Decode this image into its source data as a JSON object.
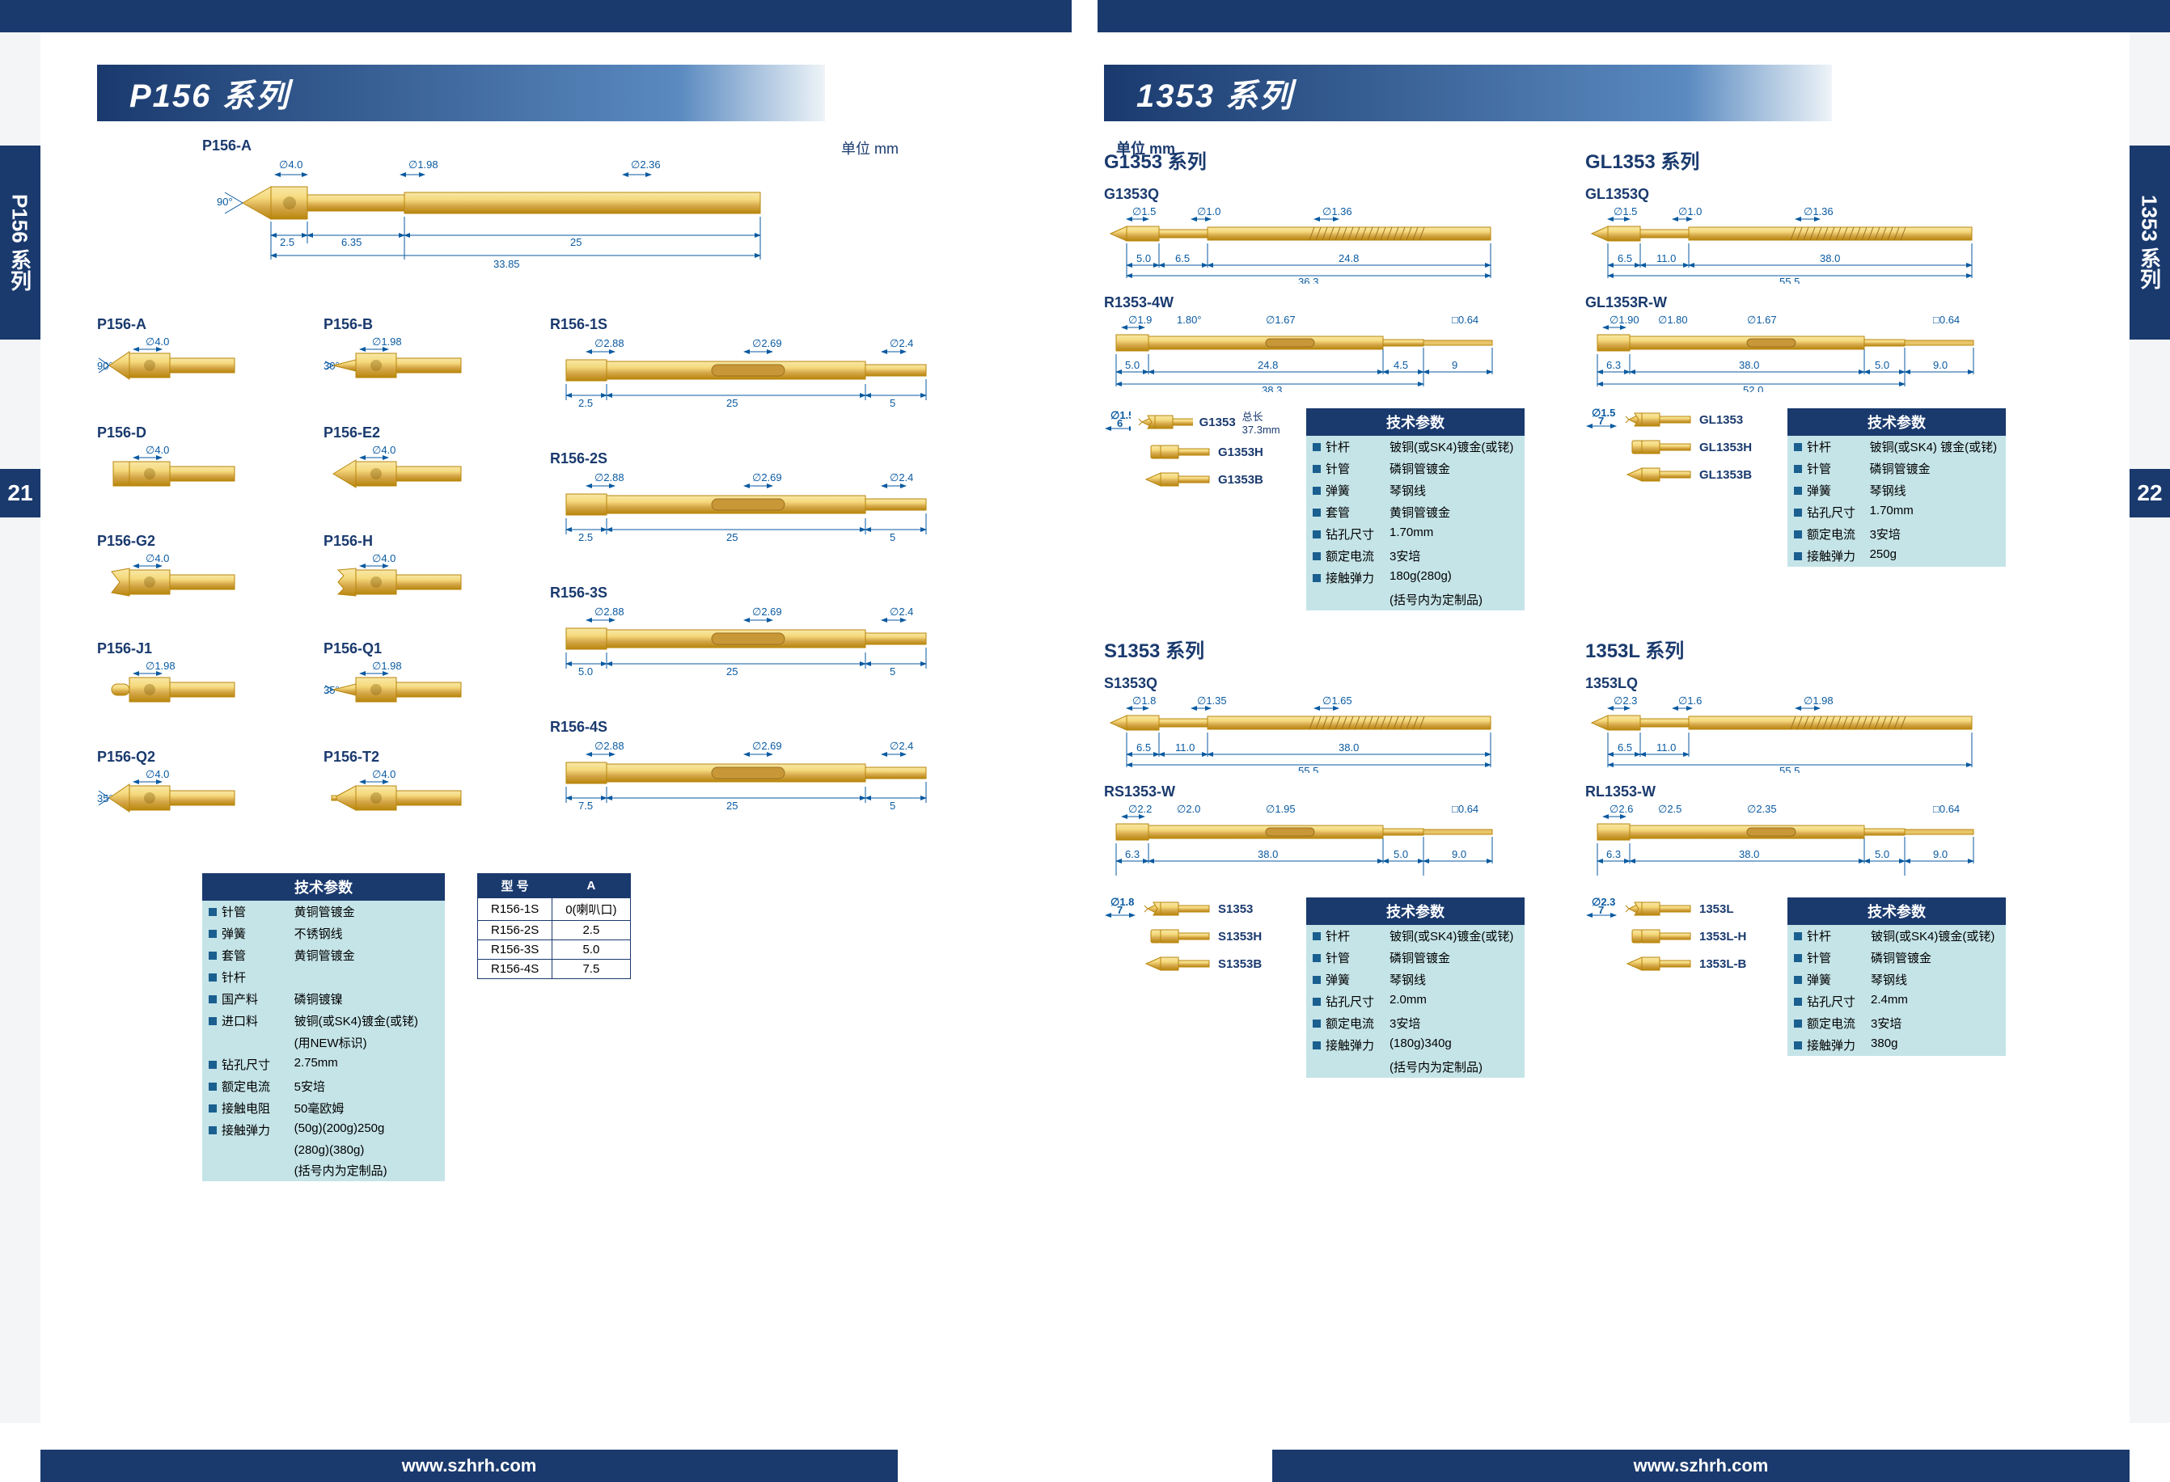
{
  "top": {
    "leftSeries": "P156 系列",
    "rightSeries": "1353 系列",
    "unitLabelL": "单位   mm",
    "unitLabelR": "单位   mm",
    "pageL": "21",
    "pageR": "22",
    "url": "www.szhrh.com",
    "sideLabelL": "P156 系列",
    "sideLabelR": "1353 系列"
  },
  "colors": {
    "navy": "#1a3a6e",
    "gold1": "#f5d97c",
    "gold2": "#d4a648",
    "gold3": "#b8860b",
    "dimcolor": "#0a5aa0",
    "specbg": "#c5e4e8"
  },
  "p156": {
    "mainLabel": "P156-A",
    "mainDims": {
      "d1": "∅4.0",
      "d2": "∅1.98",
      "d3": "∅2.36",
      "ang": "90°",
      "s1": "2.5",
      "s2": "6.35",
      "s3": "25",
      "overall": "33.85"
    },
    "tips": [
      {
        "name": "P156-A",
        "dim": "∅4.0",
        "ang": "90°"
      },
      {
        "name": "P156-B",
        "dim": "∅1.98",
        "ang": "30°"
      },
      {
        "name": "P156-D",
        "dim": "∅4.0"
      },
      {
        "name": "P156-E2",
        "dim": "∅4.0"
      },
      {
        "name": "P156-G2",
        "dim": "∅4.0"
      },
      {
        "name": "P156-H",
        "dim": "∅4.0"
      },
      {
        "name": "P156-J1",
        "dim": "∅1.98"
      },
      {
        "name": "P156-Q1",
        "dim": "∅1.98",
        "ang": "35°"
      },
      {
        "name": "P156-Q2",
        "dim": "∅4.0",
        "ang": "35°"
      },
      {
        "name": "P156-T2",
        "dim": "∅4.0"
      }
    ],
    "recepts": [
      {
        "name": "R156-1S",
        "d1": "∅2.88",
        "d2": "∅2.69",
        "d3": "∅2.4",
        "s1": "2.5",
        "s2": "25",
        "s3": "5"
      },
      {
        "name": "R156-2S",
        "d1": "∅2.88",
        "d2": "∅2.69",
        "d3": "∅2.4",
        "s1": "2.5",
        "s2": "25",
        "s3": "5"
      },
      {
        "name": "R156-3S",
        "d1": "∅2.88",
        "d2": "∅2.69",
        "d3": "∅2.4",
        "s1": "5.0",
        "s2": "25",
        "s3": "5"
      },
      {
        "name": "R156-4S",
        "d1": "∅2.88",
        "d2": "∅2.69",
        "d3": "∅2.4",
        "s1": "7.5",
        "s2": "25",
        "s3": "5"
      }
    ],
    "spec": {
      "title": "技术参数",
      "rows": [
        [
          "针管",
          "黄铜管镀金"
        ],
        [
          "弹簧",
          "不锈钢线"
        ],
        [
          "套管",
          "黄铜管镀金"
        ],
        [
          "针杆",
          ""
        ],
        [
          "国产料",
          "磷铜镀镍"
        ],
        [
          "进口料",
          "铍铜(或SK4)镀金(或铑)"
        ],
        [
          "",
          "(用NEW标识)"
        ],
        [
          "钻孔尺寸",
          "2.75mm"
        ],
        [
          "额定电流",
          "5安培"
        ],
        [
          "接触电阻",
          "50毫欧姆"
        ],
        [
          "接触弹力",
          "(50g)(200g)250g"
        ],
        [
          "",
          "(280g)(380g)"
        ],
        [
          "",
          "(括号内为定制品)"
        ]
      ]
    },
    "atable": {
      "cols": [
        "型 号",
        "A"
      ],
      "rows": [
        [
          "R156-1S",
          "0(喇叭口)"
        ],
        [
          "R156-2S",
          "2.5"
        ],
        [
          "R156-3S",
          "5.0"
        ],
        [
          "R156-4S",
          "7.5"
        ]
      ]
    }
  },
  "s1353": {
    "groups": [
      {
        "title": "G1353 系列",
        "probe": {
          "name": "G1353Q",
          "d1": "∅1.5",
          "d2": "∅1.0",
          "d3": "∅1.36",
          "s1": "5.0",
          "s2": "6.5",
          "s3": "24.8",
          "over": "36.3"
        },
        "recept": {
          "name": "R1353-4W",
          "d1": "∅1.9",
          "d2": "1.80°",
          "d3": "∅1.67",
          "d4": "□0.64",
          "s1": "5.0",
          "s2": "24.8",
          "s3": "4.5",
          "s4": "9",
          "over": "38.3"
        },
        "tips": [
          {
            "n": "G1353",
            "d": "∅1.5",
            "s": "6",
            "note": "总长37.3mm"
          },
          {
            "n": "G1353H"
          },
          {
            "n": "G1353B"
          }
        ],
        "spec": {
          "title": "技术参数",
          "rows": [
            [
              "针杆",
              "铍铜(或SK4)镀金(或铑)"
            ],
            [
              "针管",
              "磷铜管镀金"
            ],
            [
              "弹簧",
              "琴钢线"
            ],
            [
              "套管",
              "黄铜管镀金"
            ],
            [
              "钻孔尺寸",
              "1.70mm"
            ],
            [
              "额定电流",
              "3安培"
            ],
            [
              "接触弹力",
              "180g(280g)"
            ],
            [
              "",
              "(括号内为定制品)"
            ]
          ]
        }
      },
      {
        "title": "GL1353 系列",
        "probe": {
          "name": "GL1353Q",
          "d1": "∅1.5",
          "d2": "∅1.0",
          "d3": "∅1.36",
          "s1": "6.5",
          "s2": "11.0",
          "s3": "38.0",
          "over": "55.5"
        },
        "recept": {
          "name": "GL1353R-W",
          "d1": "∅1.90",
          "d2": "∅1.80",
          "d3": "∅1.67",
          "d4": "□0.64",
          "s1": "6.3",
          "s2": "38.0",
          "s3": "5.0",
          "s4": "9.0",
          "over": "52.0"
        },
        "tips": [
          {
            "n": "GL1353",
            "d": "∅1.5",
            "s": "7"
          },
          {
            "n": "GL1353H"
          },
          {
            "n": "GL1353B"
          }
        ],
        "spec": {
          "title": "技术参数",
          "rows": [
            [
              "针杆",
              "铍铜(或SK4) 镀金(或铑)"
            ],
            [
              "针管",
              "磷铜管镀金"
            ],
            [
              "弹簧",
              "琴钢线"
            ],
            [
              "钻孔尺寸",
              "1.70mm"
            ],
            [
              "额定电流",
              "3安培"
            ],
            [
              "接触弹力",
              "250g"
            ]
          ]
        }
      },
      {
        "title": "S1353 系列",
        "probe": {
          "name": "S1353Q",
          "d1": "∅1.8",
          "d2": "∅1.35",
          "d3": "∅1.65",
          "s1": "6.5",
          "s2": "11.0",
          "s3": "38.0",
          "over": "55.5"
        },
        "recept": {
          "name": "RS1353-W",
          "d1": "∅2.2",
          "d2": "∅2.0",
          "d3": "∅1.95",
          "d4": "□0.64",
          "s1": "6.3",
          "s2": "38.0",
          "s3": "5.0",
          "s4": "9.0"
        },
        "tips": [
          {
            "n": "S1353",
            "d": "∅1.8",
            "s": "7"
          },
          {
            "n": "S1353H"
          },
          {
            "n": "S1353B"
          }
        ],
        "spec": {
          "title": "技术参数",
          "rows": [
            [
              "针杆",
              "铍铜(或SK4)镀金(或铑)"
            ],
            [
              "针管",
              "磷铜管镀金"
            ],
            [
              "弹簧",
              "琴钢线"
            ],
            [
              "钻孔尺寸",
              "2.0mm"
            ],
            [
              "额定电流",
              "3安培"
            ],
            [
              "接触弹力",
              "(180g)340g"
            ],
            [
              "",
              "(括号内为定制品)"
            ]
          ]
        }
      },
      {
        "title": "1353L 系列",
        "probe": {
          "name": "1353LQ",
          "d1": "∅2.3",
          "d2": "∅1.6",
          "d3": "∅1.98",
          "s1": "6.5",
          "s2": "11.0",
          "s3": "",
          "over": "55.5"
        },
        "recept": {
          "name": "RL1353-W",
          "d1": "∅2.6",
          "d2": "∅2.5",
          "d3": "∅2.35",
          "d4": "□0.64",
          "s1": "6.3",
          "s2": "38.0",
          "s3": "5.0",
          "s4": "9.0"
        },
        "tips": [
          {
            "n": "1353L",
            "d": "∅2.3",
            "s": "7"
          },
          {
            "n": "1353L-H"
          },
          {
            "n": "1353L-B"
          }
        ],
        "spec": {
          "title": "技术参数",
          "rows": [
            [
              "针杆",
              "铍铜(或SK4)镀金(或铑)"
            ],
            [
              "针管",
              "磷铜管镀金"
            ],
            [
              "弹簧",
              "琴钢线"
            ],
            [
              "钻孔尺寸",
              "2.4mm"
            ],
            [
              "额定电流",
              "3安培"
            ],
            [
              "接触弹力",
              "380g"
            ]
          ]
        }
      }
    ]
  }
}
